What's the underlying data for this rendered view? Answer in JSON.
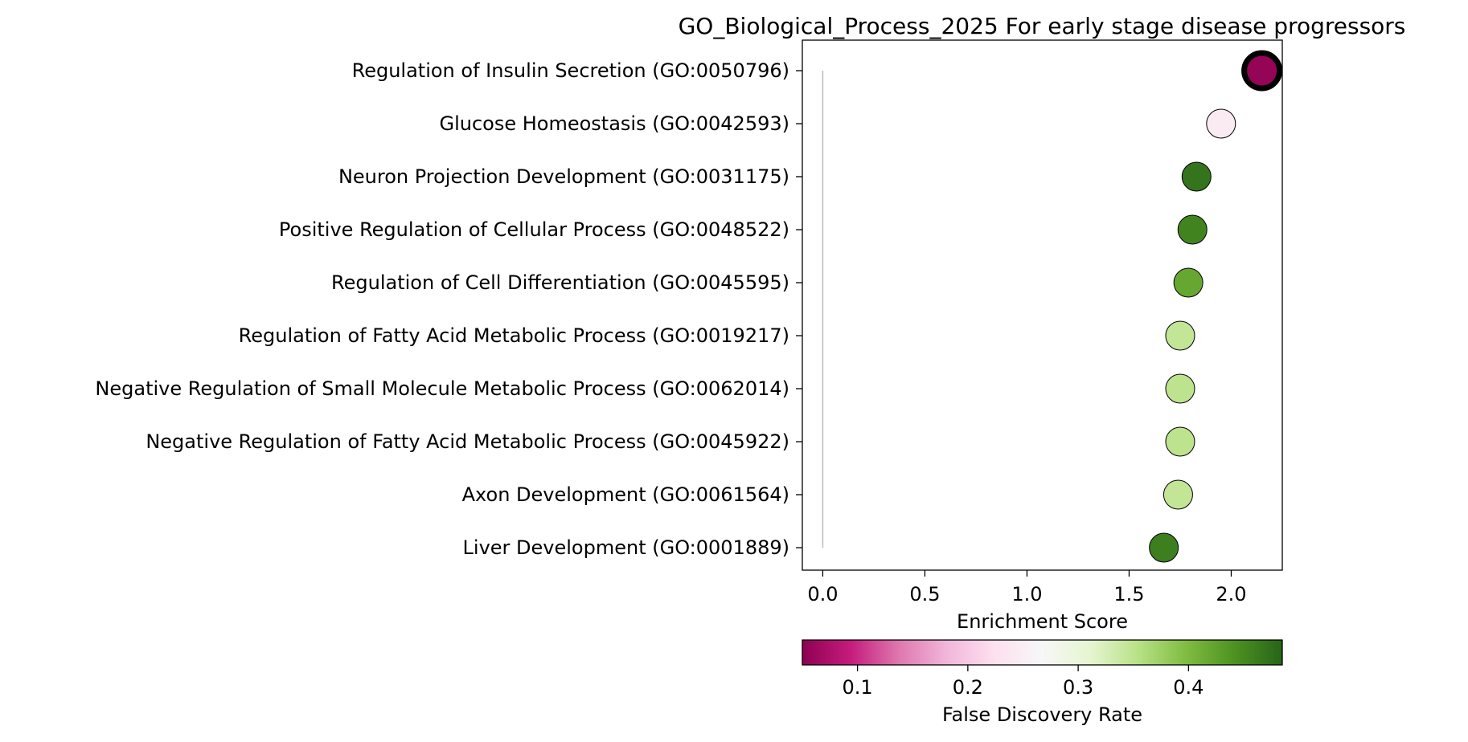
{
  "chart_data": {
    "type": "scatter",
    "title": "GO_Biological_Process_2025 For early stage disease progressors",
    "xlabel": "Enrichment Score",
    "ylabel": "",
    "xlim": [
      -0.1,
      2.25
    ],
    "x_ticks": [
      "0.0",
      "0.5",
      "1.0",
      "1.5",
      "2.0"
    ],
    "grid": false,
    "colormap": [
      "#8e0152",
      "#c51b7d",
      "#de77ae",
      "#f1b6da",
      "#fde0ef",
      "#f7f7f7",
      "#e6f5d0",
      "#b8e186",
      "#7fbc41",
      "#4d9221",
      "#276419"
    ],
    "colorbar": {
      "label": "False Discovery Rate",
      "range": [
        0.05,
        0.485
      ],
      "ticks": [
        "0.1",
        "0.2",
        "0.3",
        "0.4"
      ],
      "placement": "below"
    },
    "points": [
      {
        "term": "Regulation of Insulin Secretion (GO:0050796)",
        "x": 2.15,
        "fdr": 0.055,
        "highlighted": true
      },
      {
        "term": "Glucose Homeostasis (GO:0042593)",
        "x": 1.95,
        "fdr": 0.245,
        "highlighted": false
      },
      {
        "term": "Neuron Projection Development (GO:0031175)",
        "x": 1.83,
        "fdr": 0.47,
        "highlighted": false
      },
      {
        "term": "Positive Regulation of Cellular Process (GO:0048522)",
        "x": 1.81,
        "fdr": 0.455,
        "highlighted": false
      },
      {
        "term": "Regulation of Cell Differentiation (GO:0045595)",
        "x": 1.79,
        "fdr": 0.42,
        "highlighted": false
      },
      {
        "term": "Regulation of Fatty Acid Metabolic Process (GO:0019217)",
        "x": 1.75,
        "fdr": 0.345,
        "highlighted": false
      },
      {
        "term": "Negative Regulation of Small Molecule Metabolic Process (GO:0062014)",
        "x": 1.75,
        "fdr": 0.35,
        "highlighted": false
      },
      {
        "term": "Negative Regulation of Fatty Acid Metabolic Process (GO:0045922)",
        "x": 1.75,
        "fdr": 0.35,
        "highlighted": false
      },
      {
        "term": "Axon Development (GO:0061564)",
        "x": 1.74,
        "fdr": 0.345,
        "highlighted": false
      },
      {
        "term": "Liver Development (GO:0001889)",
        "x": 1.67,
        "fdr": 0.46,
        "highlighted": false
      }
    ],
    "reference_line": {
      "x": 0,
      "color": "#bbbbbb"
    }
  }
}
